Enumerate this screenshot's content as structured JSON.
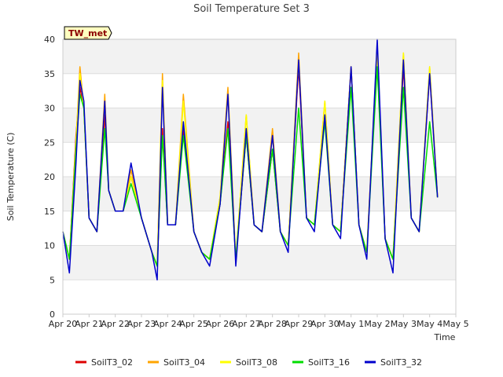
{
  "chart_data": {
    "type": "line",
    "title": "Soil Temperature Set 3",
    "xlabel": "Time",
    "ylabel": "Soil Temperature (C)",
    "badge": "TW_met",
    "ylim": [
      0,
      40
    ],
    "yticks": [
      0,
      5,
      10,
      15,
      20,
      25,
      30,
      35,
      40
    ],
    "xlim": [
      "2024-04-20",
      "2024-05-05"
    ],
    "xticks": [
      "Apr 20",
      "Apr 21",
      "Apr 22",
      "Apr 23",
      "Apr 24",
      "Apr 25",
      "Apr 26",
      "Apr 27",
      "Apr 28",
      "Apr 29",
      "Apr 30",
      "May 1",
      "May 2",
      "May 3",
      "May 4",
      "May 5"
    ],
    "grid": true,
    "legend_position": "bottom",
    "series": [
      {
        "name": "SoilT3_02",
        "color": "#dd0000",
        "x": [
          "2024-04-20",
          "2024-04-20.25",
          "2024-04-20.5",
          "2024-04-20.65",
          "2024-04-20.8",
          "2024-04-21",
          "2024-04-21.3",
          "2024-04-21.6",
          "2024-04-21.75",
          "2024-04-22",
          "2024-04-22.3",
          "2024-04-22.6",
          "2024-04-23",
          "2024-04-23.4",
          "2024-04-23.6",
          "2024-04-23.8",
          "2024-04-24",
          "2024-04-24.3",
          "2024-04-24.6",
          "2024-04-25",
          "2024-04-25.3",
          "2024-04-25.6",
          "2024-04-26",
          "2024-04-26.3",
          "2024-04-26.6",
          "2024-04-27",
          "2024-04-27.3",
          "2024-04-27.6",
          "2024-04-28",
          "2024-04-28.3",
          "2024-04-28.6",
          "2024-04-29",
          "2024-04-29.3",
          "2024-04-29.6",
          "2024-04-30",
          "2024-04-30.3",
          "2024-04-30.6",
          "2024-05-01",
          "2024-05-01.3",
          "2024-05-01.6",
          "2024-05-02",
          "2024-05-02.3",
          "2024-05-02.6",
          "2024-05-03",
          "2024-05-03.3",
          "2024-05-03.6",
          "2024-05-04",
          "2024-05-04.3"
        ],
        "values": [
          12,
          8,
          26,
          33,
          30,
          14,
          12,
          29,
          18,
          15,
          15,
          20,
          14,
          9,
          7,
          27,
          13,
          13,
          27,
          12,
          9,
          8,
          16,
          28,
          8,
          26,
          13,
          12,
          24,
          12,
          10,
          36,
          14,
          13,
          29,
          13,
          12,
          36,
          13,
          9,
          38,
          11,
          8,
          36,
          14,
          12,
          35,
          17
        ]
      },
      {
        "name": "SoilT3_04",
        "color": "#ffa500",
        "x": [
          "2024-04-20",
          "2024-04-20.25",
          "2024-04-20.5",
          "2024-04-20.65",
          "2024-04-20.8",
          "2024-04-21",
          "2024-04-21.3",
          "2024-04-21.6",
          "2024-04-21.75",
          "2024-04-22",
          "2024-04-22.3",
          "2024-04-22.6",
          "2024-04-23",
          "2024-04-23.4",
          "2024-04-23.6",
          "2024-04-23.8",
          "2024-04-24",
          "2024-04-24.3",
          "2024-04-24.6",
          "2024-04-25",
          "2024-04-25.3",
          "2024-04-25.6",
          "2024-04-26",
          "2024-04-26.3",
          "2024-04-26.6",
          "2024-04-27",
          "2024-04-27.3",
          "2024-04-27.6",
          "2024-04-28",
          "2024-04-28.3",
          "2024-04-28.6",
          "2024-04-29",
          "2024-04-29.3",
          "2024-04-29.6",
          "2024-04-30",
          "2024-04-30.3",
          "2024-04-30.6",
          "2024-05-01",
          "2024-05-01.3",
          "2024-05-01.6",
          "2024-05-02",
          "2024-05-02.3",
          "2024-05-02.6",
          "2024-05-03",
          "2024-05-03.3",
          "2024-05-03.6",
          "2024-05-04",
          "2024-05-04.3"
        ],
        "values": [
          12,
          8,
          25,
          36,
          30,
          14,
          12,
          32,
          18,
          15,
          15,
          21,
          14,
          9,
          7,
          35,
          13,
          13,
          32,
          12,
          9,
          8,
          17,
          33,
          8,
          29,
          13,
          12,
          27,
          12,
          10,
          38,
          14,
          13,
          31,
          13,
          12,
          36,
          13,
          9,
          39,
          11,
          8,
          38,
          14,
          12,
          36,
          17
        ]
      },
      {
        "name": "SoilT3_08",
        "color": "#ffff00",
        "x": [
          "2024-04-20",
          "2024-04-20.25",
          "2024-04-20.5",
          "2024-04-20.65",
          "2024-04-20.8",
          "2024-04-21",
          "2024-04-21.3",
          "2024-04-21.6",
          "2024-04-21.75",
          "2024-04-22",
          "2024-04-22.3",
          "2024-04-22.6",
          "2024-04-23",
          "2024-04-23.4",
          "2024-04-23.6",
          "2024-04-23.8",
          "2024-04-24",
          "2024-04-24.3",
          "2024-04-24.6",
          "2024-04-25",
          "2024-04-25.3",
          "2024-04-25.6",
          "2024-04-26",
          "2024-04-26.3",
          "2024-04-26.6",
          "2024-04-27",
          "2024-04-27.3",
          "2024-04-27.6",
          "2024-04-28",
          "2024-04-28.3",
          "2024-04-28.6",
          "2024-04-29",
          "2024-04-29.3",
          "2024-04-29.6",
          "2024-04-30",
          "2024-04-30.3",
          "2024-04-30.6",
          "2024-05-01",
          "2024-05-01.3",
          "2024-05-01.6",
          "2024-05-02",
          "2024-05-02.3",
          "2024-05-02.6",
          "2024-05-03",
          "2024-05-03.3",
          "2024-05-03.6",
          "2024-05-04",
          "2024-05-04.3"
        ],
        "values": [
          12,
          8,
          25,
          35,
          30,
          14,
          12,
          31,
          18,
          15,
          15,
          20,
          14,
          9,
          7,
          34,
          13,
          13,
          31,
          12,
          9,
          8,
          17,
          32,
          8,
          29,
          13,
          12,
          26,
          12,
          10,
          37,
          14,
          13,
          31,
          13,
          12,
          36,
          13,
          9,
          38,
          11,
          8,
          38,
          14,
          12,
          36,
          17
        ]
      },
      {
        "name": "SoilT3_16",
        "color": "#00dd00",
        "x": [
          "2024-04-20",
          "2024-04-20.25",
          "2024-04-20.5",
          "2024-04-20.65",
          "2024-04-20.8",
          "2024-04-21",
          "2024-04-21.3",
          "2024-04-21.6",
          "2024-04-21.75",
          "2024-04-22",
          "2024-04-22.3",
          "2024-04-22.6",
          "2024-04-23",
          "2024-04-23.4",
          "2024-04-23.6",
          "2024-04-23.8",
          "2024-04-24",
          "2024-04-24.3",
          "2024-04-24.6",
          "2024-04-25",
          "2024-04-25.3",
          "2024-04-25.6",
          "2024-04-26",
          "2024-04-26.3",
          "2024-04-26.6",
          "2024-04-27",
          "2024-04-27.3",
          "2024-04-27.6",
          "2024-04-28",
          "2024-04-28.3",
          "2024-04-28.6",
          "2024-04-29",
          "2024-04-29.3",
          "2024-04-29.6",
          "2024-04-30",
          "2024-04-30.3",
          "2024-04-30.6",
          "2024-05-01",
          "2024-05-01.3",
          "2024-05-01.6",
          "2024-05-02",
          "2024-05-02.3",
          "2024-05-02.6",
          "2024-05-03",
          "2024-05-03.3",
          "2024-05-03.6",
          "2024-05-04",
          "2024-05-04.3"
        ],
        "values": [
          12,
          8,
          24,
          32,
          30,
          14,
          12,
          27,
          18,
          15,
          15,
          19,
          14,
          9,
          7,
          26,
          13,
          13,
          26,
          12,
          9,
          8,
          16,
          27,
          8,
          26,
          13,
          12,
          24,
          12,
          10,
          30,
          14,
          13,
          28,
          13,
          12,
          33,
          13,
          9,
          36,
          11,
          8,
          33,
          14,
          12,
          28,
          17
        ]
      },
      {
        "name": "SoilT3_32",
        "color": "#0000cc",
        "x": [
          "2024-04-20",
          "2024-04-20.25",
          "2024-04-20.5",
          "2024-04-20.65",
          "2024-04-20.8",
          "2024-04-21",
          "2024-04-21.3",
          "2024-04-21.6",
          "2024-04-21.75",
          "2024-04-22",
          "2024-04-22.3",
          "2024-04-22.6",
          "2024-04-23",
          "2024-04-23.4",
          "2024-04-23.6",
          "2024-04-23.8",
          "2024-04-24",
          "2024-04-24.3",
          "2024-04-24.6",
          "2024-04-25",
          "2024-04-25.3",
          "2024-04-25.6",
          "2024-04-26",
          "2024-04-26.3",
          "2024-04-26.6",
          "2024-04-27",
          "2024-04-27.3",
          "2024-04-27.6",
          "2024-04-28",
          "2024-04-28.3",
          "2024-04-28.6",
          "2024-04-29",
          "2024-04-29.3",
          "2024-04-29.6",
          "2024-04-30",
          "2024-04-30.3",
          "2024-04-30.6",
          "2024-05-01",
          "2024-05-01.3",
          "2024-05-01.6",
          "2024-05-02",
          "2024-05-02.3",
          "2024-05-02.6",
          "2024-05-03",
          "2024-05-03.3",
          "2024-05-03.6",
          "2024-05-04",
          "2024-05-04.3"
        ],
        "values": [
          12,
          6,
          22,
          34,
          31,
          14,
          12,
          31,
          18,
          15,
          15,
          22,
          14,
          9,
          5,
          33,
          13,
          13,
          28,
          12,
          9,
          7,
          16,
          32,
          7,
          27,
          13,
          12,
          26,
          12,
          9,
          37,
          14,
          12,
          29,
          13,
          11,
          36,
          13,
          8,
          40,
          11,
          6,
          37,
          14,
          12,
          35,
          17
        ]
      }
    ]
  }
}
